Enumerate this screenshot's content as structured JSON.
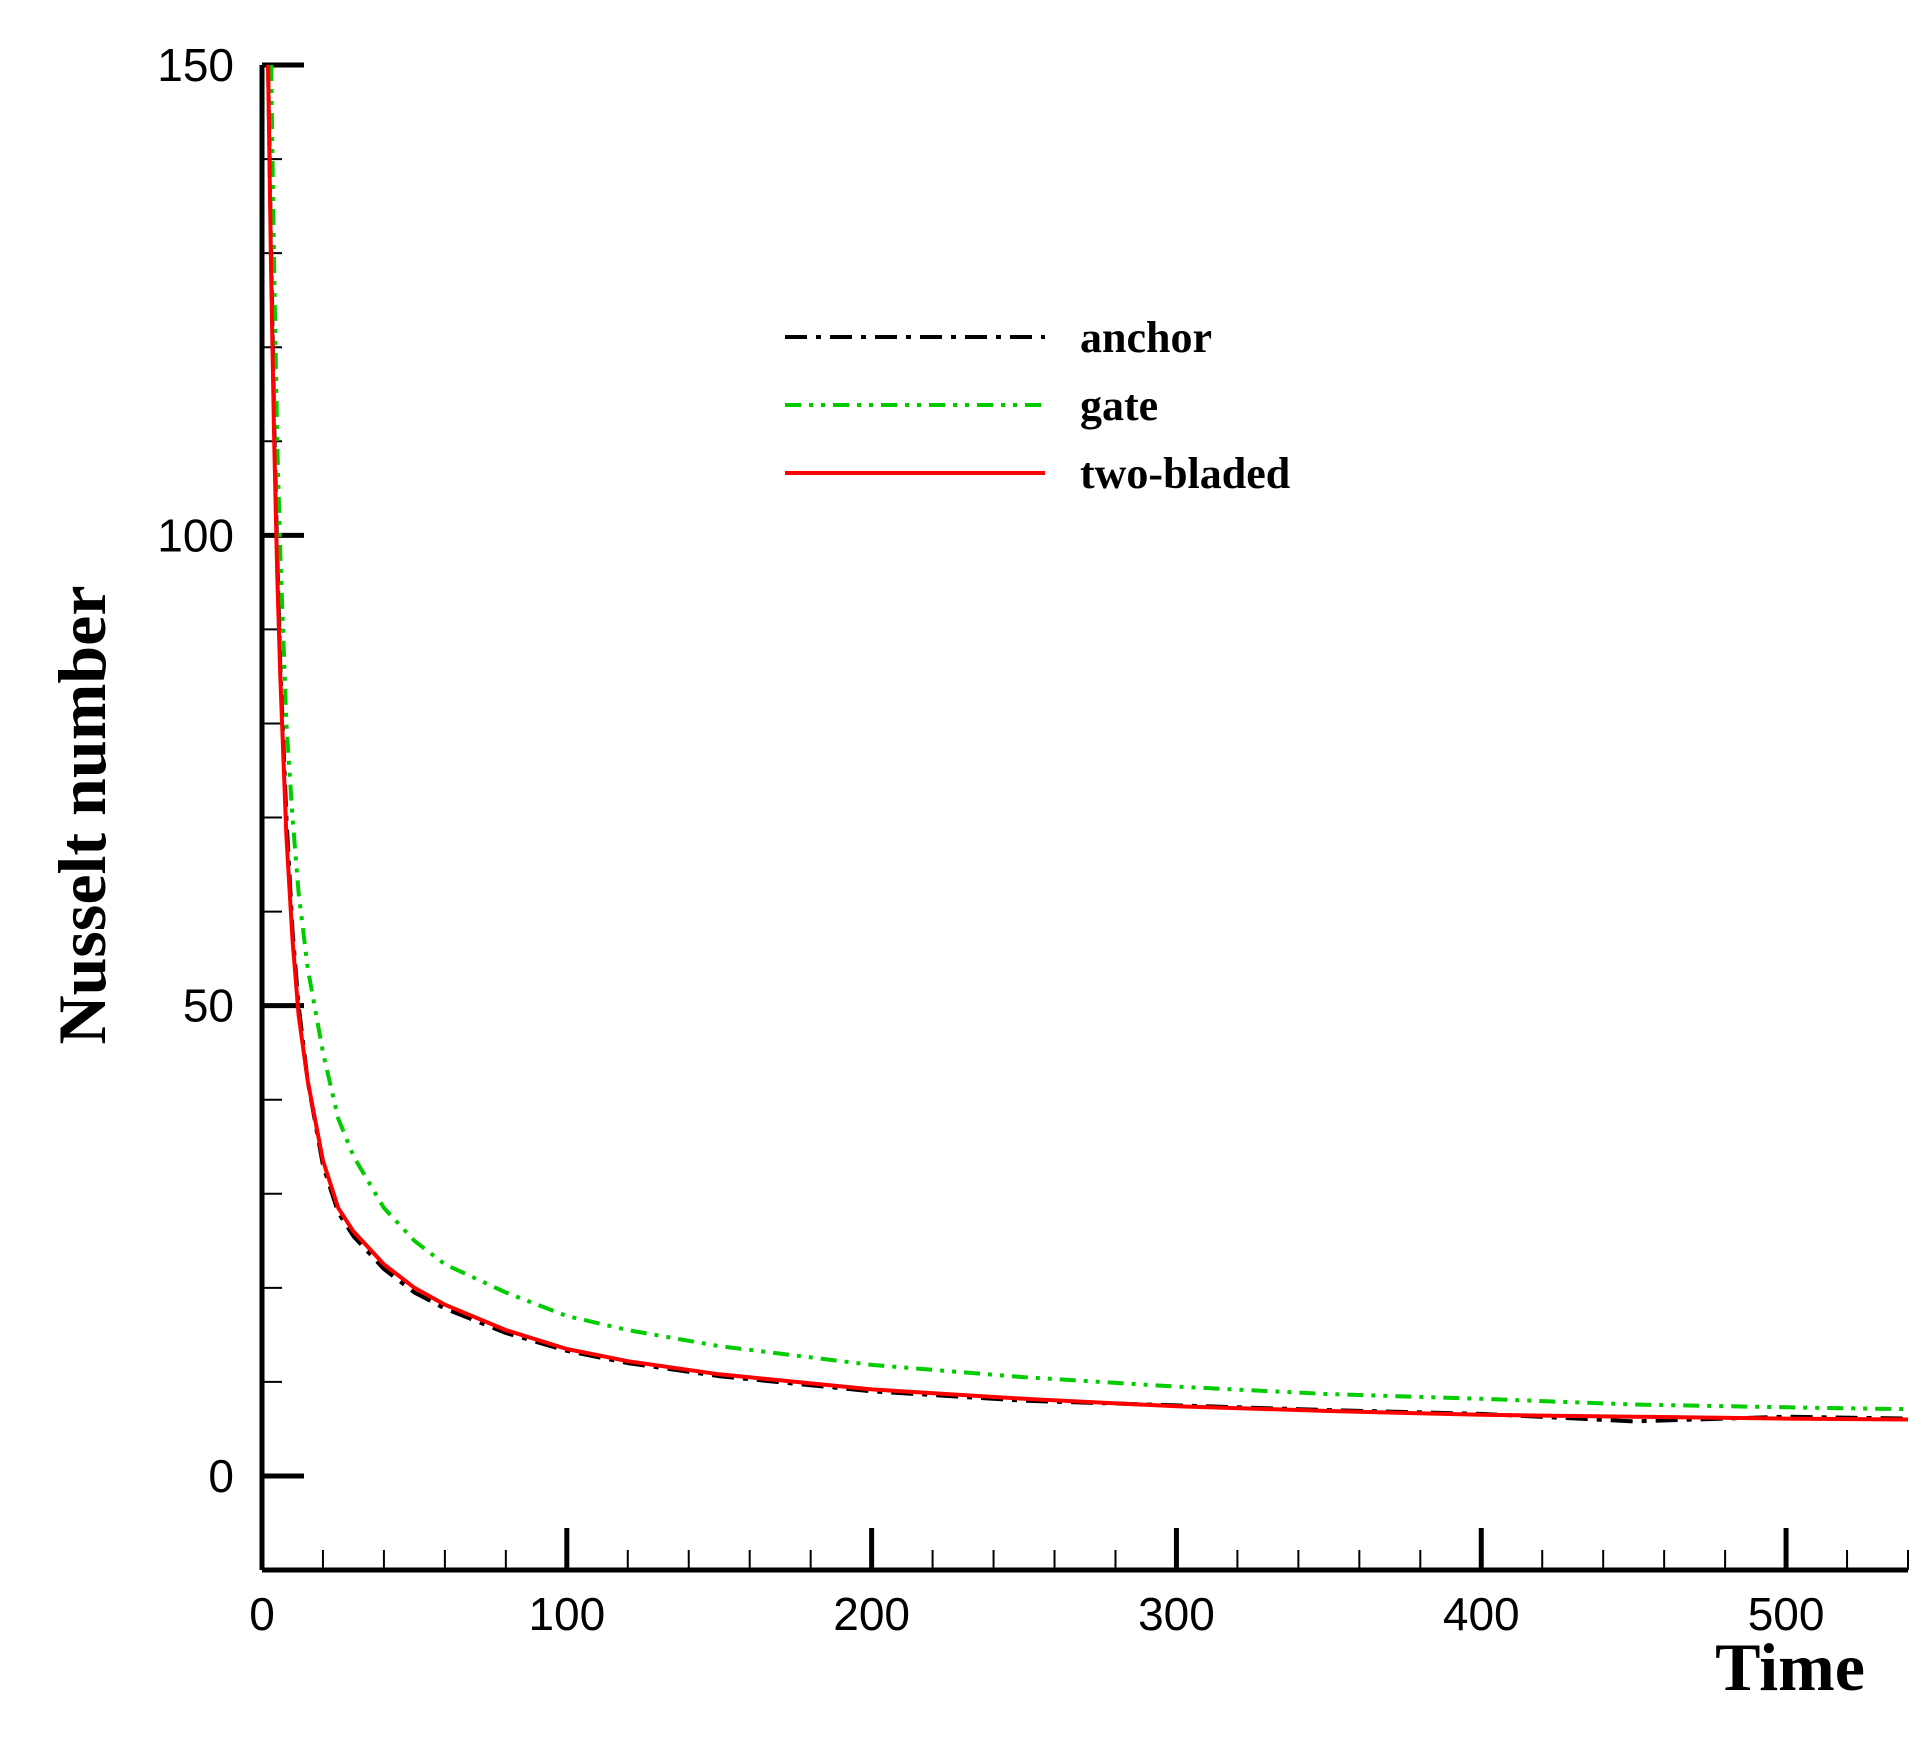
{
  "chart_data": {
    "type": "line",
    "xlabel": "Time",
    "ylabel": "Nusselt number",
    "xlim": [
      0,
      540
    ],
    "ylim": [
      -10,
      150
    ],
    "xticks": [
      0,
      100,
      200,
      300,
      400,
      500
    ],
    "yticks": [
      0,
      50,
      100,
      150
    ],
    "xtick_labels": [
      "0",
      "100",
      "200",
      "300",
      "400",
      "500"
    ],
    "ytick_labels": [
      "0",
      "50",
      "100",
      "150"
    ],
    "grid": false,
    "legend_placement": "top-center",
    "series": [
      {
        "name": "anchor",
        "color": "#000000",
        "dash": "dash-dot",
        "x": [
          2,
          3,
          4,
          5,
          6,
          8,
          10,
          12,
          15,
          20,
          25,
          30,
          40,
          50,
          60,
          80,
          100,
          120,
          150,
          200,
          250,
          300,
          350,
          400,
          450,
          500,
          540
        ],
        "y": [
          150,
          130,
          112,
          98,
          86,
          70,
          58,
          50,
          42,
          33,
          28,
          25.5,
          22,
          19.5,
          17.8,
          15.2,
          13.3,
          12,
          10.6,
          9,
          8,
          7.5,
          7,
          6.6,
          5.8,
          6.3,
          6.1
        ]
      },
      {
        "name": "gate",
        "color": "#00cc00",
        "dash": "dash-dot-dot",
        "x": [
          3,
          4,
          5,
          6,
          8,
          10,
          12,
          15,
          20,
          25,
          30,
          40,
          50,
          60,
          80,
          100,
          120,
          150,
          200,
          250,
          300,
          350,
          400,
          450,
          500,
          540
        ],
        "y": [
          150,
          128,
          110,
          98,
          80,
          70,
          62,
          54,
          45,
          38,
          34,
          28.5,
          25,
          22.5,
          19.5,
          17,
          15.5,
          13.8,
          11.8,
          10.5,
          9.5,
          8.7,
          8.2,
          7.6,
          7.3,
          7.1
        ]
      },
      {
        "name": "two-bladed",
        "color": "#ff0000",
        "dash": "solid",
        "x": [
          2,
          3,
          4,
          5,
          6,
          8,
          10,
          12,
          15,
          20,
          25,
          30,
          40,
          50,
          60,
          80,
          100,
          120,
          150,
          200,
          250,
          300,
          350,
          400,
          450,
          500,
          540
        ],
        "y": [
          150,
          128,
          110,
          96,
          85,
          68,
          57,
          49,
          42,
          33.5,
          28.5,
          26,
          22.5,
          20,
          18.2,
          15.5,
          13.5,
          12.2,
          10.8,
          9.2,
          8.2,
          7.4,
          6.9,
          6.5,
          6.3,
          6.1,
          6
        ]
      }
    ]
  }
}
